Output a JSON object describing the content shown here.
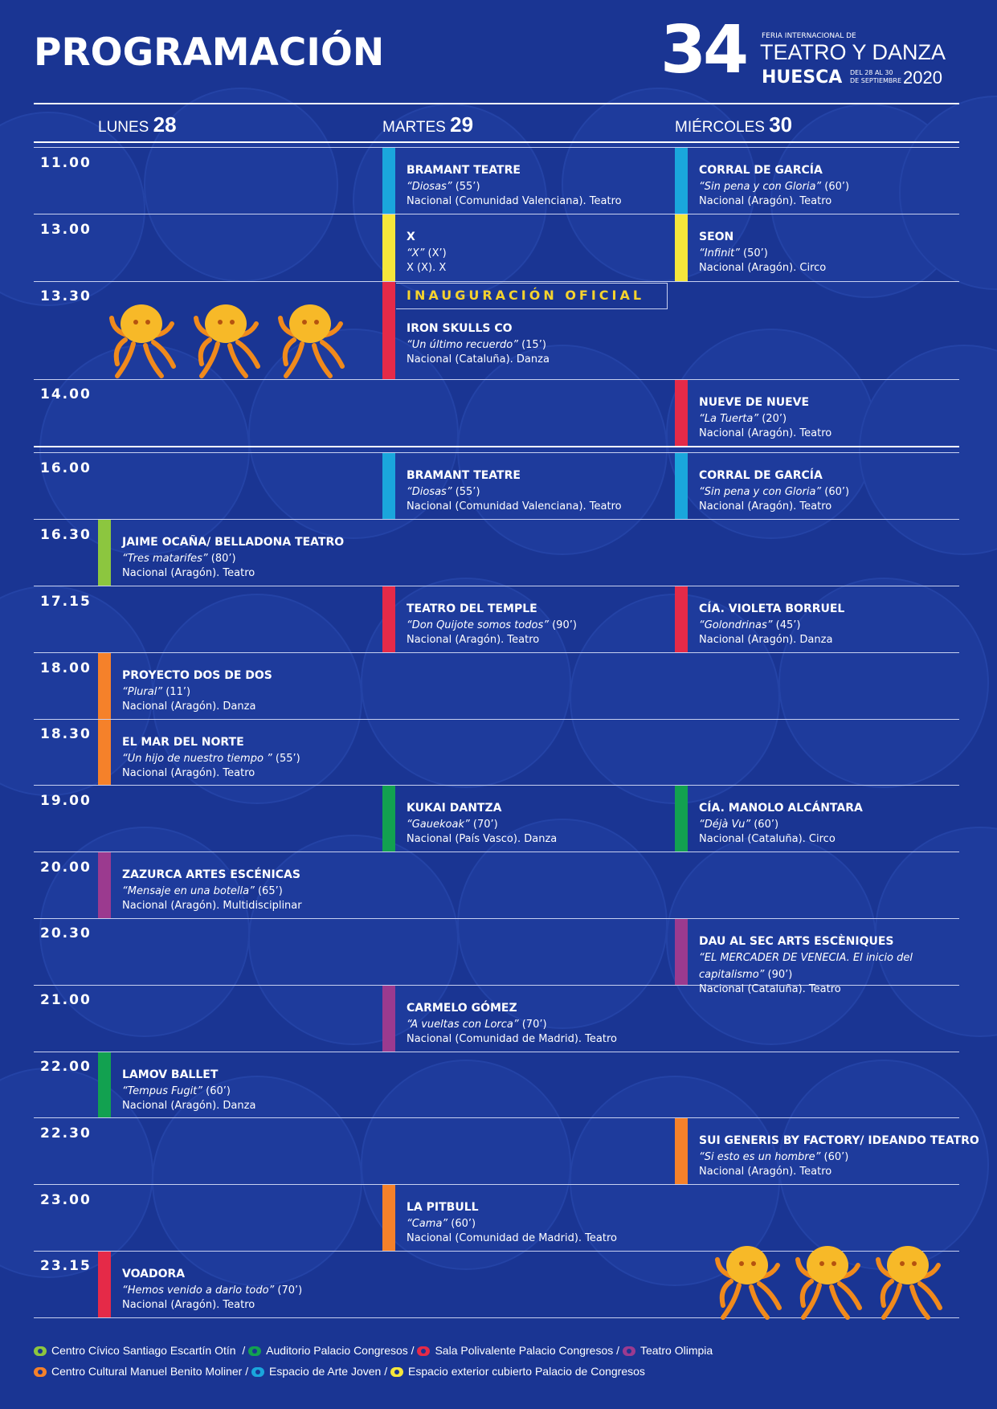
{
  "title": "PROGRAMACIÓN",
  "logo": {
    "number": "34",
    "feria": "FERIA INTERNACIONAL DE",
    "teatro_danza": "TEATRO Y DANZA",
    "city": "HUESCA",
    "dates_line1": "DEL 28 AL 30",
    "dates_line2": "DE SEPTIEMBRE",
    "year": "2020"
  },
  "days": [
    {
      "name": "LUNES",
      "num": "28"
    },
    {
      "name": "MARTES",
      "num": "29"
    },
    {
      "name": "MIÉRCOLES",
      "num": "30"
    }
  ],
  "times": [
    "11.00",
    "13.00",
    "13.30",
    "14.00",
    "16.00",
    "16.30",
    "17.15",
    "18.00",
    "18.30",
    "19.00",
    "20.00",
    "20.30",
    "21.00",
    "22.00",
    "22.30",
    "23.00",
    "23.15"
  ],
  "inauguracion": "INAUGURACIÓN OFICIAL",
  "events": [
    {
      "name": "BRAMANT TEATRE",
      "work": "“Diosas”",
      "dur": " (55’)",
      "info": "Nacional (Comunidad Valenciana). Teatro",
      "color": "#1aa6dc"
    },
    {
      "name": "CORRAL DE GARCÍA",
      "work": "“Sin pena y con Gloria”",
      "dur": " (60’)",
      "info": "Nacional (Aragón). Teatro",
      "color": "#1aa6dc"
    },
    {
      "name": "X",
      "work": "“X”",
      "dur": " (X’)",
      "info": "X (X). X",
      "color": "#f5e63b"
    },
    {
      "name": "SEON",
      "work": "“Infinit”",
      "dur": " (50’)",
      "info": "Nacional (Aragón). Circo",
      "color": "#f5e63b"
    },
    {
      "name": "IRON SKULLS CO",
      "work": "“Un último recuerdo”",
      "dur": " (15’)",
      "info": "Nacional (Cataluña). Danza",
      "color": "#e52a48"
    },
    {
      "name": "NUEVE DE NUEVE",
      "work": "“La Tuerta”",
      "dur": " (20’)",
      "info": "Nacional (Aragón). Teatro",
      "color": "#e52a48"
    },
    {
      "name": "BRAMANT TEATRE",
      "work": "“Diosas”",
      "dur": " (55’)",
      "info": "Nacional (Comunidad Valenciana). Teatro",
      "color": "#1aa6dc"
    },
    {
      "name": "CORRAL DE GARCÍA",
      "work": "“Sin pena y con Gloria”",
      "dur": " (60’)",
      "info": "Nacional (Aragón). Teatro",
      "color": "#1aa6dc"
    },
    {
      "name": "JAIME OCAÑA/ BELLADONA TEATRO",
      "work": "“Tres matarifes”",
      "dur": " (80’)",
      "info": "Nacional (Aragón). Teatro",
      "color": "#8cc63f"
    },
    {
      "name": "TEATRO DEL TEMPLE",
      "work": "“Don Quijote somos todos”",
      "dur": " (90’)",
      "info": "Nacional (Aragón). Teatro",
      "color": "#e52a48"
    },
    {
      "name": "CÍA. VIOLETA BORRUEL",
      "work": "“Golondrinas”",
      "dur": " (45’)",
      "info": "Nacional (Aragón). Danza",
      "color": "#e52a48"
    },
    {
      "name": "PROYECTO DOS DE DOS",
      "work": "“Plural”",
      "dur": " (11’)",
      "info": "Nacional (Aragón). Danza",
      "color": "#f5812a"
    },
    {
      "name": "EL MAR DEL NORTE",
      "work": "“Un hijo de nuestro tiempo ”",
      "dur": " (55’)",
      "info": "Nacional (Aragón). Teatro",
      "color": "#f5812a"
    },
    {
      "name": "KUKAI DANTZA",
      "work": "“Gauekoak”",
      "dur": " (70’)",
      "info": "Nacional (País Vasco). Danza",
      "color": "#12a150"
    },
    {
      "name": "CÍA. MANOLO ALCÁNTARA",
      "work": "“Déjà Vu”",
      "dur": " (60’)",
      "info": "Nacional (Cataluña). Circo",
      "color": "#12a150"
    },
    {
      "name": "ZAZURCA ARTES ESCÉNICAS",
      "work": "“Mensaje en una botella”",
      "dur": " (65’)",
      "info": "Nacional (Aragón). Multidisciplinar",
      "color": "#9b3a8f"
    },
    {
      "name": "DAU AL SEC ARTS ESCÈNIQUES",
      "work": "“EL MERCADER DE VENECIA. El inicio del capitalismo”",
      "dur": " (90’)",
      "info": "Nacional (Cataluña). Teatro",
      "color": "#9b3a8f"
    },
    {
      "name": "CARMELO GÓMEZ",
      "work": "“A vueltas con Lorca”",
      "dur": " (70’)",
      "info": "Nacional (Comunidad de Madrid). Teatro",
      "color": "#9b3a8f"
    },
    {
      "name": "LAMOV BALLET",
      "work": "“Tempus Fugit”",
      "dur": " (60’)",
      "info": "Nacional (Aragón). Danza",
      "color": "#12a150"
    },
    {
      "name": "SUI GENERIS BY FACTORY/ IDEANDO TEATRO",
      "work": "“Si esto es un hombre”",
      "dur": " (60’)",
      "info": "Nacional (Aragón). Teatro",
      "color": "#f5812a"
    },
    {
      "name": "LA PITBULL",
      "work": "“Cama”",
      "dur": " (60’)",
      "info": "Nacional (Comunidad de Madrid). Teatro",
      "color": "#f5812a"
    },
    {
      "name": "VOADORA",
      "work": "“Hemos venido a darlo todo”",
      "dur": " (70’)",
      "info": "Nacional (Aragón). Teatro",
      "color": "#e52a48"
    }
  ],
  "legend": [
    {
      "label": "Centro Cívico Santiago Escartín Otín",
      "sep": "/",
      "color": "#8cc63f"
    },
    {
      "label": "Auditorio Palacio Congresos",
      "sep": "/",
      "color": "#12a150"
    },
    {
      "label": "Sala Polivalente Palacio Congresos",
      "sep": "/",
      "color": "#e52a48"
    },
    {
      "label": "Teatro Olimpia",
      "sep": "",
      "color": "#9b3a8f"
    },
    {
      "label": "Centro Cultural Manuel Benito Moliner",
      "sep": "/",
      "color": "#f5812a"
    },
    {
      "label": "Espacio de Arte Joven",
      "sep": "/",
      "color": "#1aa6dc"
    },
    {
      "label": "Espacio exterior cubierto Palacio de Congresos",
      "sep": "",
      "color": "#f5e63b"
    }
  ]
}
